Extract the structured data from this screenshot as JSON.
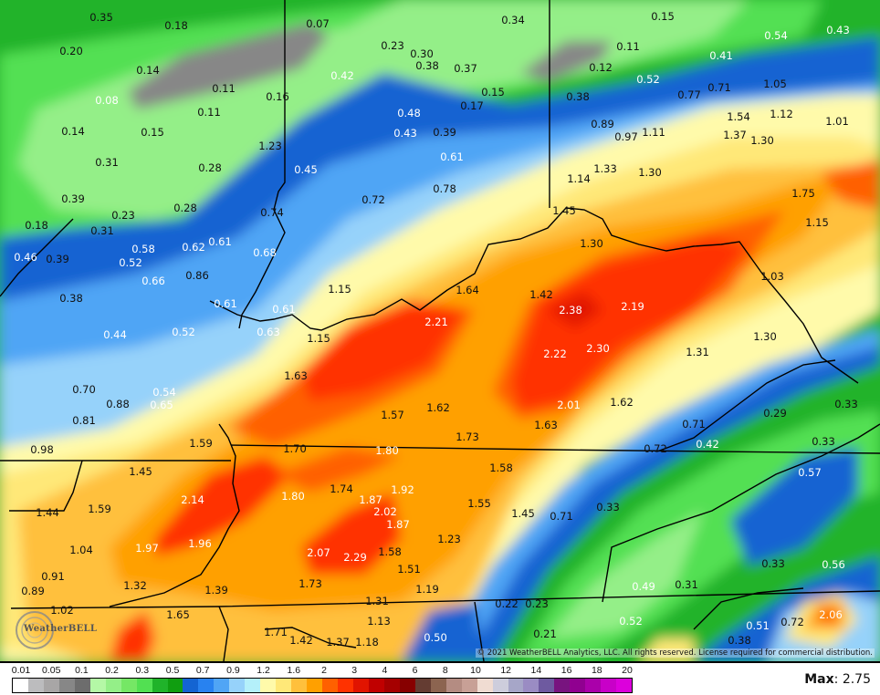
{
  "map": {
    "values": [
      "0.35",
      "0.18",
      "0.07",
      "0.34",
      "0.15",
      "0.54",
      "0.43",
      "0.20",
      "0.14",
      "0.23",
      "0.30",
      "0.38",
      "0.42",
      "0.37",
      "0.11",
      "0.12",
      "0.41",
      "0.52",
      "0.08",
      "0.11",
      "0.16",
      "0.15",
      "0.17",
      "0.38",
      "0.77",
      "0.71",
      "1.05",
      "0.11",
      "0.48",
      "0.43",
      "0.39",
      "0.89",
      "0.97",
      "1.11",
      "1.54",
      "1.12",
      "1.01",
      "0.14",
      "0.15",
      "1.23",
      "1.37",
      "1.30",
      "0.31",
      "0.28",
      "0.45",
      "0.61",
      "1.14",
      "1.33",
      "1.30",
      "0.39",
      "0.28",
      "0.72",
      "0.78",
      "1.75",
      "0.18",
      "0.23",
      "0.31",
      "0.74",
      "1.45",
      "1.15",
      "0.46",
      "0.39",
      "0.58",
      "0.52",
      "0.62",
      "0.61",
      "0.68",
      "1.30",
      "0.66",
      "0.86",
      "1.03",
      "0.38",
      "1.15",
      "1.64",
      "1.42",
      "0.61",
      "0.61",
      "2.21",
      "2.38",
      "2.19",
      "0.44",
      "0.52",
      "0.63",
      "1.15",
      "1.30",
      "1.31",
      "2.22",
      "2.30",
      "0.70",
      "0.54",
      "0.65",
      "0.88",
      "1.63",
      "1.57",
      "1.62",
      "2.01",
      "1.62",
      "0.33",
      "0.81",
      "0.29",
      "0.71",
      "1.63",
      "1.73",
      "0.98",
      "1.59",
      "1.70",
      "1.80",
      "0.72",
      "0.42",
      "0.33",
      "1.45",
      "1.58",
      "0.57",
      "1.74",
      "1.87",
      "1.92",
      "1.80",
      "2.14",
      "2.02",
      "1.87",
      "1.55",
      "1.45",
      "0.71",
      "0.33",
      "1.44",
      "1.59",
      "1.04",
      "1.97",
      "1.96",
      "2.07",
      "2.29",
      "1.58",
      "1.23",
      "0.91",
      "0.89",
      "1.32",
      "1.73",
      "1.51",
      "1.39",
      "1.19",
      "0.49",
      "0.31",
      "0.33",
      "0.56",
      "1.02",
      "1.65",
      "1.31",
      "0.22",
      "0.23",
      "0.52",
      "2.06",
      "0.72",
      "0.51",
      "1.71",
      "1.42",
      "1.37",
      "1.18",
      "1.13",
      "0.50",
      "0.21",
      "0.38"
    ],
    "copyright": "© 2021 WeatherBELL Analytics, LLC. All rights reserved. License required for commercial distribution.",
    "logo_text": "WeatherBELL"
  },
  "legend": {
    "labels": [
      "0.01",
      "0.05",
      "0.1",
      "0.2",
      "0.3",
      "0.5",
      "0.7",
      "0.9",
      "1.2",
      "1.6",
      "2",
      "3",
      "4",
      "6",
      "8",
      "10",
      "12",
      "14",
      "16",
      "18",
      "20"
    ],
    "colors": [
      "#ffffff",
      "#bcbcbe",
      "#a8a6a6",
      "#878787",
      "#6d6d6d",
      "#b4f8a6",
      "#94ef88",
      "#75e765",
      "#52e052",
      "#20b32a",
      "#109e10",
      "#1464d2",
      "#2882f0",
      "#50a5f5",
      "#96d2fa",
      "#b4f0fa",
      "#fffaaa",
      "#ffe878",
      "#ffc03c",
      "#ffa000",
      "#ff6000",
      "#ff3200",
      "#e11400",
      "#c00000",
      "#a50000",
      "#870000",
      "#643c32",
      "#8c6450",
      "#b48c82",
      "#c8a096",
      "#f0dcd2",
      "#cdcddc",
      "#a6a6c8",
      "#9a8cc3",
      "#6e5aa0",
      "#78147f",
      "#900090",
      "#aa00aa",
      "#c800c8",
      "#dc00dc"
    ],
    "max_label": "Max",
    "max_value": ": 2.75"
  }
}
